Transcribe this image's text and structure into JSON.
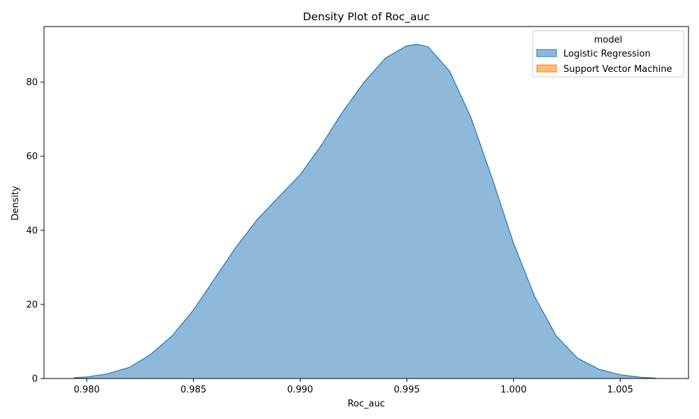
{
  "chart_data": {
    "type": "area",
    "title": "Density Plot of Roc_auc",
    "xlabel": "Roc_auc",
    "ylabel": "Density",
    "xlim": [
      0.978,
      1.0082
    ],
    "ylim": [
      0,
      95
    ],
    "x_ticks": [
      0.98,
      0.985,
      0.99,
      0.995,
      1.0,
      1.005
    ],
    "x_tick_labels": [
      "0.980",
      "0.985",
      "0.990",
      "0.995",
      "1.000",
      "1.005"
    ],
    "y_ticks": [
      0,
      20,
      40,
      60,
      80
    ],
    "y_tick_labels": [
      "0",
      "20",
      "40",
      "60",
      "80"
    ],
    "grid": false,
    "legend": {
      "title": "model",
      "placement": "top-right",
      "entries": [
        "Logistic Regression",
        "Support Vector Machine"
      ]
    },
    "series": [
      {
        "name": "Logistic Regression",
        "fill": "#8fb9da",
        "stroke": "#1f77b4",
        "x": [
          0.9794,
          0.98,
          0.981,
          0.982,
          0.983,
          0.984,
          0.985,
          0.986,
          0.987,
          0.988,
          0.989,
          0.99,
          0.991,
          0.992,
          0.993,
          0.994,
          0.995,
          0.9955,
          0.996,
          0.997,
          0.998,
          0.999,
          1.0,
          1.001,
          1.002,
          1.003,
          1.004,
          1.005,
          1.006,
          1.0067
        ],
        "y": [
          0.2,
          0.4,
          1.3,
          3.0,
          6.5,
          11.5,
          18.5,
          27.0,
          35.5,
          43.0,
          49.0,
          55.0,
          63.0,
          72.0,
          80.0,
          86.5,
          89.8,
          90.2,
          89.5,
          83.0,
          70.5,
          54.0,
          36.5,
          22.0,
          11.5,
          5.5,
          2.5,
          1.0,
          0.3,
          0.1
        ]
      },
      {
        "name": "Support Vector Machine",
        "fill": "#ffbb78",
        "stroke": "#ff7f0e",
        "x": [],
        "y": []
      }
    ]
  }
}
